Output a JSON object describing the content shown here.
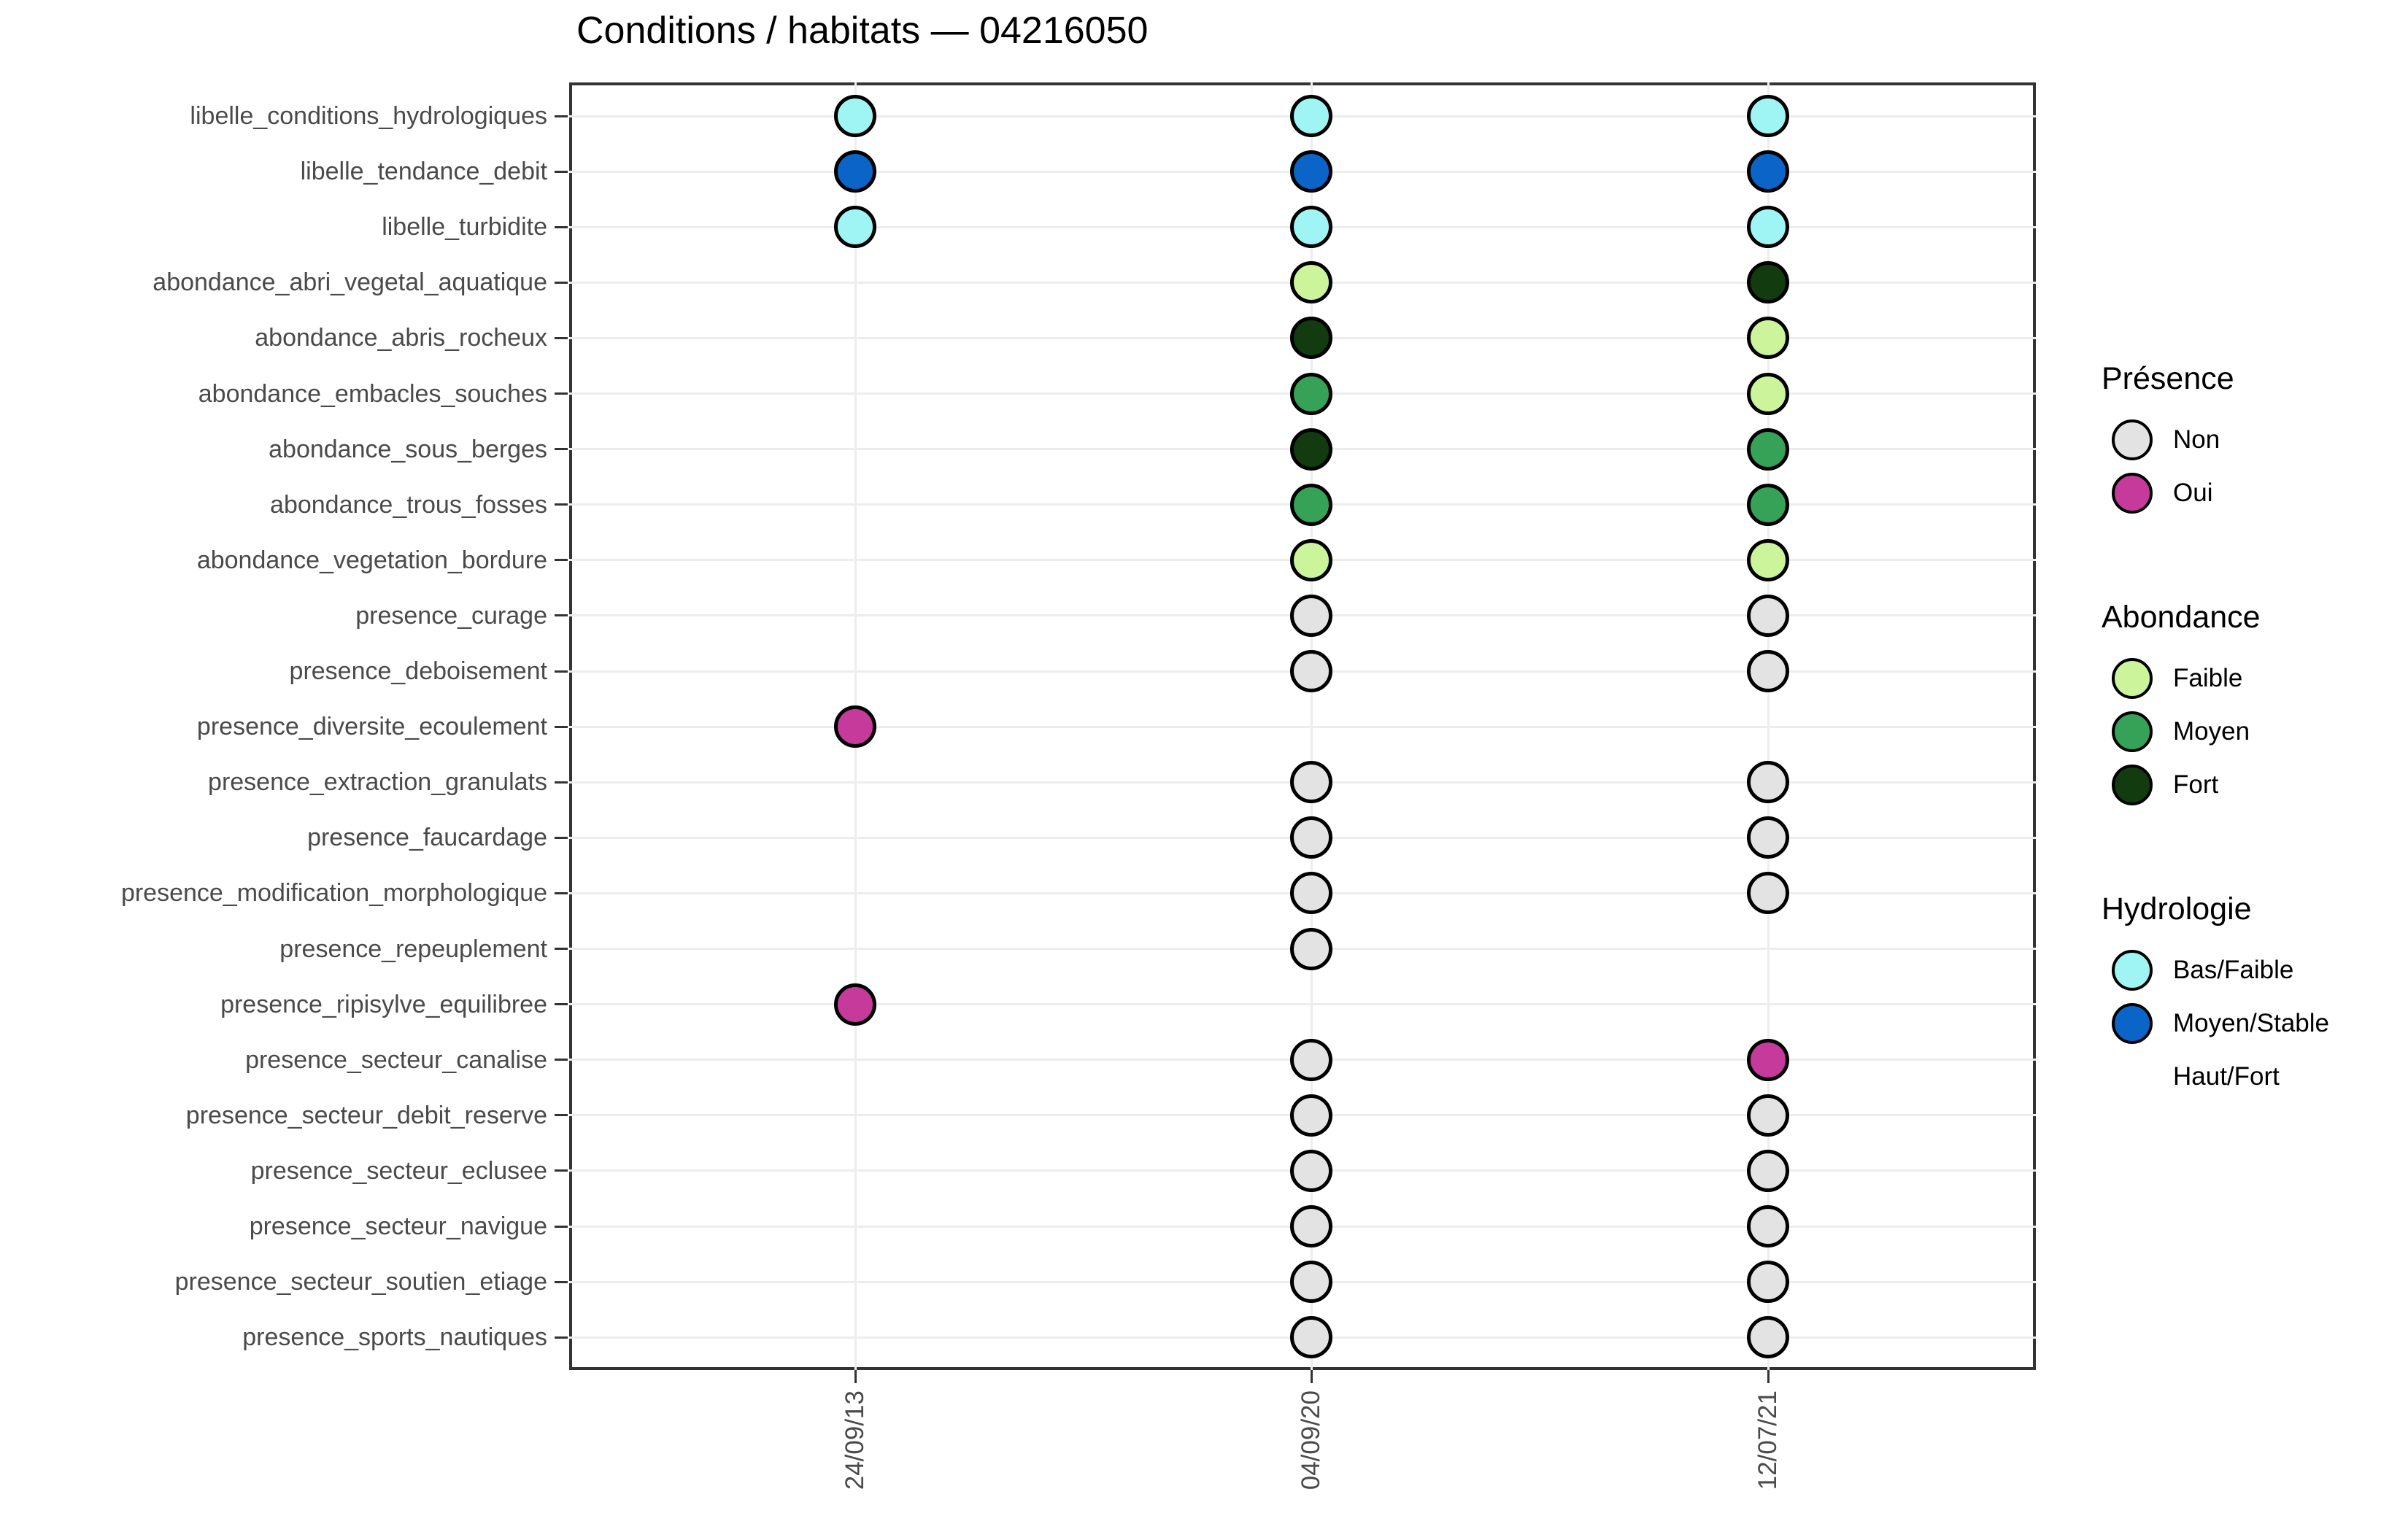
{
  "chart_data": {
    "type": "scatter",
    "title": "Conditions / habitats — 04216050",
    "x_categories": [
      "24/09/13",
      "04/09/20",
      "12/07/21"
    ],
    "y_categories": [
      "libelle_conditions_hydrologiques",
      "libelle_tendance_debit",
      "libelle_turbidite",
      "abondance_abri_vegetal_aquatique",
      "abondance_abris_rocheux",
      "abondance_embacles_souches",
      "abondance_sous_berges",
      "abondance_trous_fosses",
      "abondance_vegetation_bordure",
      "presence_curage",
      "presence_deboisement",
      "presence_diversite_ecoulement",
      "presence_extraction_granulats",
      "presence_faucardage",
      "presence_modification_morphologique",
      "presence_repeuplement",
      "presence_ripisylve_equilibree",
      "presence_secteur_canalise",
      "presence_secteur_debit_reserve",
      "presence_secteur_eclusee",
      "presence_secteur_navigue",
      "presence_secteur_soutien_etiage",
      "presence_sports_nautiques"
    ],
    "matrix": [
      [
        "bas_faible",
        "bas_faible",
        "bas_faible"
      ],
      [
        "moyen_stable",
        "moyen_stable",
        "moyen_stable"
      ],
      [
        "bas_faible",
        "bas_faible",
        "bas_faible"
      ],
      [
        null,
        "faible",
        "fort"
      ],
      [
        null,
        "fort",
        "faible"
      ],
      [
        null,
        "moyen",
        "faible"
      ],
      [
        null,
        "fort",
        "moyen"
      ],
      [
        null,
        "moyen",
        "moyen"
      ],
      [
        null,
        "faible",
        "faible"
      ],
      [
        null,
        "non",
        "non"
      ],
      [
        null,
        "non",
        "non"
      ],
      [
        "oui",
        null,
        null
      ],
      [
        null,
        "non",
        "non"
      ],
      [
        null,
        "non",
        "non"
      ],
      [
        null,
        "non",
        "non"
      ],
      [
        null,
        "non",
        null
      ],
      [
        "oui",
        null,
        null
      ],
      [
        null,
        "non",
        "oui"
      ],
      [
        null,
        "non",
        "non"
      ],
      [
        null,
        "non",
        "non"
      ],
      [
        null,
        "non",
        "non"
      ],
      [
        null,
        "non",
        "non"
      ],
      [
        null,
        "non",
        "non"
      ]
    ],
    "legend": [
      {
        "title": "Présence",
        "entries": [
          {
            "label": "Non",
            "key": "non"
          },
          {
            "label": "Oui",
            "key": "oui"
          }
        ]
      },
      {
        "title": "Abondance",
        "entries": [
          {
            "label": "Faible",
            "key": "faible"
          },
          {
            "label": "Moyen",
            "key": "moyen"
          },
          {
            "label": "Fort",
            "key": "fort"
          }
        ]
      },
      {
        "title": "Hydrologie",
        "entries": [
          {
            "label": "Bas/Faible",
            "key": "bas_faible"
          },
          {
            "label": "Moyen/Stable",
            "key": "moyen_stable"
          },
          {
            "label": "Haut/Fort",
            "key": null
          }
        ]
      }
    ],
    "palette": {
      "non": "#E3E3E3",
      "oui": "#C53A9B",
      "faible": "#CBF49B",
      "moyen": "#36A257",
      "fort": "#123B10",
      "bas_faible": "#9EF5F3",
      "moyen_stable": "#0B64C8"
    },
    "colors": {
      "axis_text": "#4a4a4a",
      "grid": "#EDEDED",
      "panel_border": "#333333",
      "dot_stroke": "#000000"
    },
    "grid": true,
    "legend_position": "right"
  }
}
